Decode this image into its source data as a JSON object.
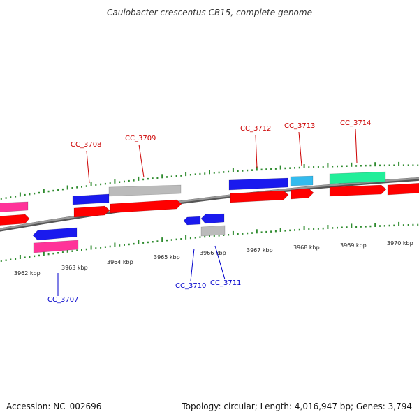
{
  "title": "Caulobacter crescentus CB15, complete genome",
  "footer": {
    "accession": "Accession: NC_002696",
    "summary": "Topology: circular; Length: 4,016,947 bp; Genes: 3,794"
  },
  "colors": {
    "backbone": "#808080",
    "ticks": "#2e8b2e",
    "label_forward": "#cc0000",
    "label_reverse": "#0000cc"
  },
  "kbp_labels": [
    "3962 kbp",
    "3963 kbp",
    "3964 kbp",
    "3965 kbp",
    "3966 kbp",
    "3967 kbp",
    "3968 kbp",
    "3969 kbp",
    "3970 kbp"
  ],
  "gene_labels": [
    {
      "name": "CC_3707",
      "strand": "reverse"
    },
    {
      "name": "CC_3708",
      "strand": "forward"
    },
    {
      "name": "CC_3709",
      "strand": "forward"
    },
    {
      "name": "CC_3710",
      "strand": "reverse"
    },
    {
      "name": "CC_3711",
      "strand": "reverse"
    },
    {
      "name": "CC_3712",
      "strand": "forward"
    },
    {
      "name": "CC_3713",
      "strand": "forward"
    },
    {
      "name": "CC_3714",
      "strand": "forward"
    }
  ],
  "features": [
    {
      "id": "f1",
      "color": "#ff3399"
    },
    {
      "id": "f2",
      "color": "#ff0000"
    },
    {
      "id": "f3",
      "color": "#1a1aee"
    },
    {
      "id": "f4",
      "color": "#ff3399"
    },
    {
      "id": "f5",
      "color": "#1a1aee"
    },
    {
      "id": "f6",
      "color": "#bbbbbb"
    },
    {
      "id": "f7",
      "color": "#ff0000"
    },
    {
      "id": "f8",
      "color": "#ff0000"
    },
    {
      "id": "f9",
      "color": "#1a1aee"
    },
    {
      "id": "f10",
      "color": "#1a1aee"
    },
    {
      "id": "f11",
      "color": "#bbbbbb"
    },
    {
      "id": "f12",
      "color": "#1a1aee"
    },
    {
      "id": "f13",
      "color": "#ff0000"
    },
    {
      "id": "f14",
      "color": "#33bbee"
    },
    {
      "id": "f15",
      "color": "#ff0000"
    },
    {
      "id": "f16",
      "color": "#22ee99"
    },
    {
      "id": "f17",
      "color": "#ff0000"
    },
    {
      "id": "f18",
      "color": "#ff0000"
    }
  ]
}
